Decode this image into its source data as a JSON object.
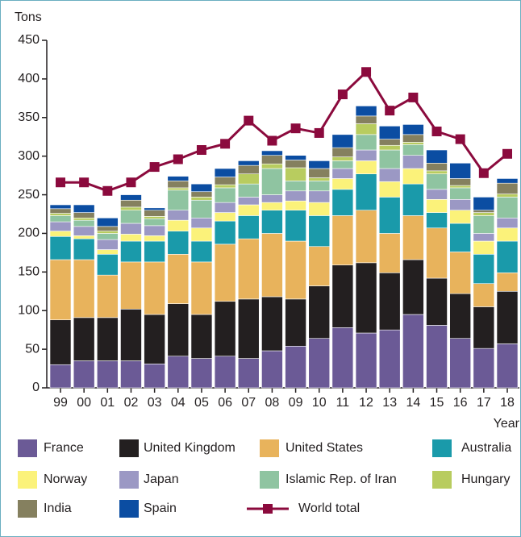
{
  "chart_data": {
    "type": "bar",
    "stacked": true,
    "y_label": "Tons",
    "x_label": "Year",
    "categories": [
      "99",
      "00",
      "01",
      "02",
      "03",
      "04",
      "05",
      "06",
      "07",
      "08",
      "09",
      "10",
      "11",
      "12",
      "13",
      "14",
      "15",
      "16",
      "17",
      "18"
    ],
    "ylim": [
      0,
      450
    ],
    "yticks": [
      0,
      50,
      100,
      150,
      200,
      250,
      300,
      350,
      400,
      450
    ],
    "series": [
      {
        "name": "France",
        "color": "#6b5a96",
        "values": [
          30,
          35,
          35,
          35,
          31,
          41,
          38,
          41,
          38,
          48,
          54,
          64,
          78,
          71,
          75,
          95,
          81,
          64,
          51,
          57
        ]
      },
      {
        "name": "United Kingdom",
        "color": "#231f20",
        "values": [
          58,
          56,
          56,
          67,
          64,
          68,
          57,
          71,
          77,
          70,
          61,
          68,
          81,
          91,
          74,
          71,
          61,
          58,
          54,
          68
        ]
      },
      {
        "name": "United States",
        "color": "#e8b35c",
        "values": [
          78,
          75,
          55,
          61,
          68,
          64,
          68,
          74,
          78,
          82,
          75,
          51,
          64,
          68,
          51,
          57,
          65,
          54,
          30,
          24
        ]
      },
      {
        "name": "Australia",
        "color": "#1a9aaa",
        "values": [
          30,
          27,
          27,
          27,
          27,
          30,
          27,
          30,
          30,
          30,
          40,
          40,
          34,
          47,
          47,
          41,
          20,
          37,
          38,
          41
        ]
      },
      {
        "name": "Norway",
        "color": "#fbf27a",
        "values": [
          7,
          4,
          6,
          9,
          7,
          14,
          17,
          11,
          14,
          10,
          12,
          17,
          14,
          17,
          20,
          20,
          17,
          17,
          17,
          17
        ]
      },
      {
        "name": "Japan",
        "color": "#9b98c4",
        "values": [
          12,
          12,
          13,
          14,
          13,
          13,
          13,
          13,
          10,
          10,
          13,
          15,
          13,
          14,
          17,
          17,
          13,
          14,
          10,
          13
        ]
      },
      {
        "name": "Islamic Rep. of Iran",
        "color": "#8fc4a1",
        "values": [
          8,
          8,
          8,
          17,
          9,
          26,
          23,
          19,
          17,
          34,
          13,
          13,
          10,
          20,
          24,
          14,
          20,
          15,
          23,
          27
        ]
      },
      {
        "name": "Hungary",
        "color": "#b8cc5f",
        "values": [
          3,
          3,
          3,
          4,
          3,
          3,
          4,
          4,
          13,
          6,
          17,
          4,
          5,
          14,
          6,
          3,
          4,
          3,
          4,
          4
        ]
      },
      {
        "name": "India",
        "color": "#85805f",
        "values": [
          6,
          7,
          6,
          9,
          8,
          9,
          7,
          10,
          11,
          11,
          10,
          12,
          12,
          10,
          8,
          10,
          10,
          9,
          3,
          14
        ]
      },
      {
        "name": "Spain",
        "color": "#0b4da2",
        "values": [
          5,
          10,
          11,
          7,
          3,
          6,
          10,
          11,
          6,
          6,
          6,
          10,
          17,
          13,
          17,
          13,
          17,
          20,
          17,
          6
        ]
      },
      {
        "name": "World total",
        "type": "line",
        "color": "#8b0a3d",
        "values": [
          266,
          266,
          255,
          266,
          286,
          296,
          308,
          316,
          346,
          320,
          336,
          330,
          380,
          409,
          359,
          376,
          332,
          322,
          278,
          303
        ]
      }
    ]
  }
}
